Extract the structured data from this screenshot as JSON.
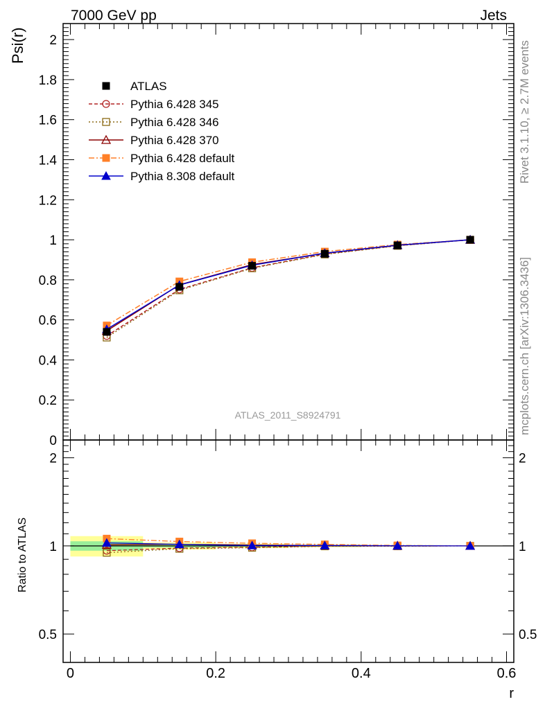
{
  "header": {
    "left": "7000 GeV pp",
    "right": "Jets"
  },
  "side_text": {
    "upper": "Rivet 3.1.10, ≥ 2.7M events",
    "lower": "mcplots.cern.ch [arXiv:1306.3436]"
  },
  "watermark": "ATLAS_2011_S8924791",
  "chart_data": {
    "type": "line",
    "xlabel": "r",
    "x_ticks": [
      "0",
      "0.2",
      "0.4",
      "0.6"
    ],
    "x_range": [
      -0.01,
      0.61
    ],
    "x": [
      0.05,
      0.15,
      0.25,
      0.35,
      0.45,
      0.55
    ],
    "main": {
      "ylabel": "Psi(r)",
      "y_range": [
        0,
        2.08
      ],
      "y_ticks": [
        "0",
        "0.2",
        "0.4",
        "0.6",
        "0.8",
        "1",
        "1.2",
        "1.4",
        "1.6",
        "1.8",
        "2"
      ],
      "series": [
        {
          "name": "ATLAS",
          "values": [
            0.54,
            0.765,
            0.87,
            0.93,
            0.972,
            1.0
          ],
          "color": "#000000"
        },
        {
          "name": "Pythia 6.428 345",
          "values": [
            0.52,
            0.752,
            0.86,
            0.929,
            0.971,
            1.0
          ],
          "color": "#b22222"
        },
        {
          "name": "Pythia 6.428 346",
          "values": [
            0.512,
            0.748,
            0.858,
            0.927,
            0.97,
            1.0
          ],
          "color": "#8b6914"
        },
        {
          "name": "Pythia 6.428 370",
          "values": [
            0.545,
            0.775,
            0.876,
            0.933,
            0.973,
            1.0
          ],
          "color": "#8b0000"
        },
        {
          "name": "Pythia 6.428 default",
          "values": [
            0.572,
            0.792,
            0.888,
            0.941,
            0.976,
            1.0
          ],
          "color": "#ff7f27"
        },
        {
          "name": "Pythia 8.308 default",
          "values": [
            0.553,
            0.774,
            0.873,
            0.933,
            0.973,
            1.0
          ],
          "color": "#0000cc"
        }
      ]
    },
    "ratio": {
      "ylabel": "Ratio to ATLAS",
      "y_range": [
        0.4,
        2.3
      ],
      "y_scale": "log",
      "y_ticks": [
        "0.5",
        "1",
        "2"
      ],
      "band_green": [
        [
          0.963,
          1.037
        ],
        [
          0.988,
          1.012
        ],
        [
          0.993,
          1.007
        ],
        [
          0.995,
          1.005
        ],
        [
          0.997,
          1.003
        ],
        [
          0.999,
          1.001
        ]
      ],
      "band_yellow": [
        [
          0.92,
          1.08
        ],
        [
          0.972,
          1.028
        ],
        [
          0.983,
          1.017
        ],
        [
          0.99,
          1.01
        ],
        [
          0.995,
          1.005
        ],
        [
          0.998,
          1.002
        ]
      ],
      "series": [
        {
          "name": "Pythia 6.428 345",
          "values": [
            0.963,
            0.983,
            0.989,
            0.999,
            0.999,
            1.0
          ]
        },
        {
          "name": "Pythia 6.428 346",
          "values": [
            0.948,
            0.978,
            0.986,
            0.997,
            0.998,
            1.0
          ]
        },
        {
          "name": "Pythia 6.428 370",
          "values": [
            1.009,
            1.013,
            1.007,
            1.003,
            1.001,
            1.0
          ]
        },
        {
          "name": "Pythia 6.428 default",
          "values": [
            1.059,
            1.035,
            1.021,
            1.012,
            1.004,
            1.0
          ]
        },
        {
          "name": "Pythia 8.308 default",
          "values": [
            1.024,
            1.012,
            1.003,
            1.003,
            1.001,
            1.0
          ]
        }
      ]
    }
  }
}
